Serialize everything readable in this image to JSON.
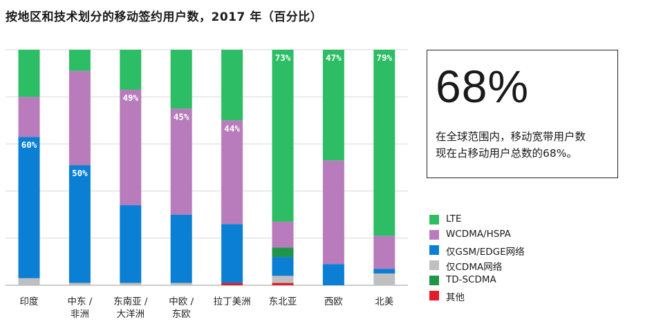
{
  "title": "按地区和技术划分的移动签约用户数，2017 年（百分比）",
  "callout": {
    "value": "68%",
    "line1": "在全球范围内，移动宽带用户数",
    "line2": "现在占移动用户总数的68%。"
  },
  "colors": {
    "LTE": "#2dbd64",
    "WCDMA/HSPA": "#b87cbc",
    "GSM/EDGE": "#0a7fd4",
    "CDMA": "#bfbfbf",
    "TD-SCDMA": "#1f9548",
    "Other": "#e21c2b"
  },
  "chart_data": {
    "type": "bar",
    "stacked": true,
    "title": "按地区和技术划分的移动签约用户数，2017 年（百分比）",
    "ylim": [
      0,
      100
    ],
    "grid": true,
    "legend_position": "right",
    "categories": [
      "印度",
      "中东 /\n非洲",
      "东南亚 /\n大洋洲",
      "中欧 /\n东欧",
      "拉丁美洲",
      "东北亚",
      "西欧",
      "北美"
    ],
    "series": [
      {
        "name": "其他",
        "key": "Other",
        "values": [
          0,
          0,
          0,
          0,
          1,
          1,
          0,
          0
        ]
      },
      {
        "name": "仅CDMA网络",
        "key": "CDMA",
        "values": [
          3,
          1,
          1,
          1,
          0,
          3,
          0,
          5
        ]
      },
      {
        "name": "仅GSM/EDGE网络",
        "key": "GSM/EDGE",
        "values": [
          60,
          50,
          33,
          29,
          25,
          8,
          9,
          2
        ]
      },
      {
        "name": "TD-SCDMA",
        "key": "TD-SCDMA",
        "values": [
          0,
          0,
          0,
          0,
          0,
          4,
          0,
          0
        ]
      },
      {
        "name": "WCDMA/HSPA",
        "key": "WCDMA/HSPA",
        "values": [
          17,
          40,
          49,
          45,
          44,
          11,
          44,
          14
        ]
      },
      {
        "name": "LTE",
        "key": "LTE",
        "values": [
          20,
          9,
          17,
          25,
          30,
          73,
          47,
          79
        ]
      }
    ],
    "data_labels": [
      {
        "category": 0,
        "series": "GSM/EDGE",
        "text": "60%"
      },
      {
        "category": 1,
        "series": "GSM/EDGE",
        "text": "50%"
      },
      {
        "category": 2,
        "series": "WCDMA/HSPA",
        "text": "49%"
      },
      {
        "category": 3,
        "series": "WCDMA/HSPA",
        "text": "45%"
      },
      {
        "category": 4,
        "series": "WCDMA/HSPA",
        "text": "44%"
      },
      {
        "category": 5,
        "series": "LTE",
        "text": "73%"
      },
      {
        "category": 6,
        "series": "LTE",
        "text": "47%"
      },
      {
        "category": 7,
        "series": "LTE",
        "text": "79%"
      }
    ]
  },
  "legend": [
    {
      "label": "LTE",
      "key": "LTE"
    },
    {
      "label": "WCDMA/HSPA",
      "key": "WCDMA/HSPA"
    },
    {
      "label": "仅GSM/EDGE网络",
      "key": "GSM/EDGE"
    },
    {
      "label": "仅CDMA网络",
      "key": "CDMA"
    },
    {
      "label": "TD-SCDMA",
      "key": "TD-SCDMA"
    },
    {
      "label": "其他",
      "key": "Other"
    }
  ]
}
